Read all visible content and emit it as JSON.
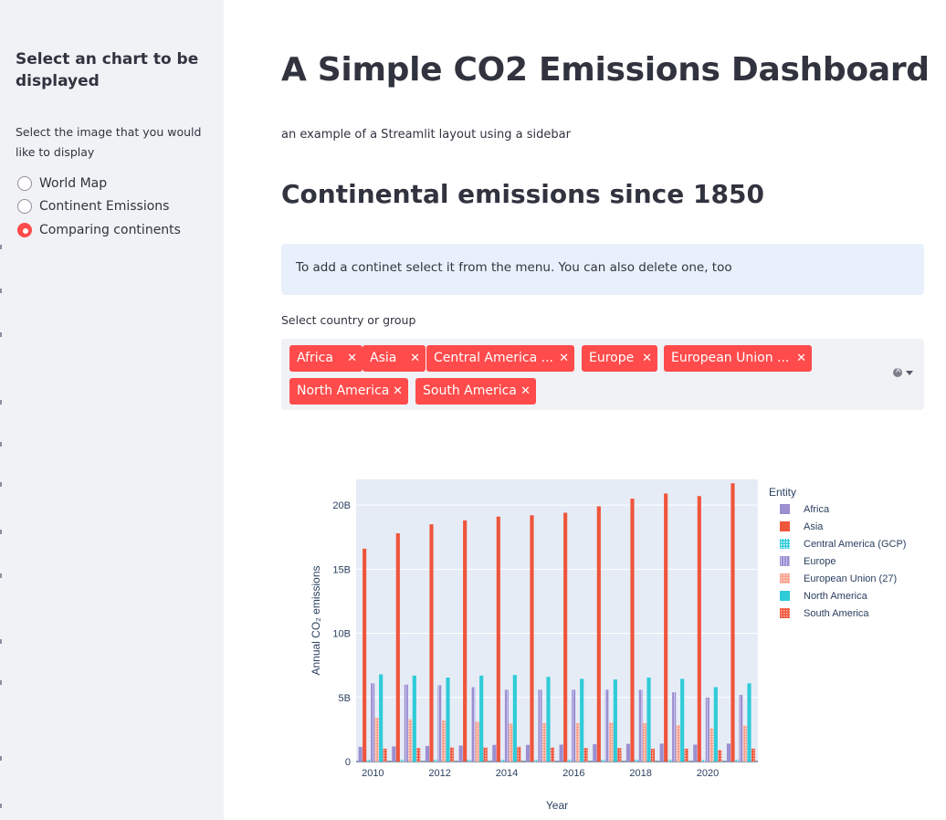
{
  "sidebar": {
    "title": "Select an chart to be displayed",
    "radio_label": "Select the image that you would like to display",
    "options": [
      "World Map",
      "Continent Emissions",
      "Comparing continents"
    ],
    "selected_index": 2
  },
  "main": {
    "title": "A Simple CO2 Emissions Dashboard",
    "subtitle": "an example of a Streamlit layout using a sidebar",
    "section_title": "Continental emissions since 1850",
    "info": "To add a continet select it from the menu. You can also delete one, too",
    "multiselect": {
      "label": "Select country or group",
      "tags": [
        "Africa",
        "Asia",
        "Central America ...",
        "Europe",
        "European Union ...",
        "North America",
        "South America"
      ],
      "clear_icon": "clear-all-icon",
      "caret_icon": "chevron-down-icon"
    },
    "accent_color": "#ff4b4b"
  },
  "chart_data": {
    "type": "bar",
    "xlabel": "Year",
    "ylabel": "Annual CO₂ emissions",
    "legend_title": "Entity",
    "legend_position": "right",
    "ylim": [
      0,
      22000000000
    ],
    "yticks": [
      {
        "value": 0,
        "label": "0"
      },
      {
        "value": 5000000000,
        "label": "5B"
      },
      {
        "value": 10000000000,
        "label": "10B"
      },
      {
        "value": 15000000000,
        "label": "15B"
      },
      {
        "value": 20000000000,
        "label": "20B"
      }
    ],
    "xticks": [
      "2010",
      "2012",
      "2014",
      "2016",
      "2018",
      "2020"
    ],
    "categories": [
      "2010",
      "2011",
      "2012",
      "2013",
      "2014",
      "2015",
      "2016",
      "2017",
      "2018",
      "2019",
      "2020",
      "2021"
    ],
    "series": [
      {
        "name": "Africa",
        "color": "#9b8fd1",
        "values": [
          1150000000.0,
          1180000000.0,
          1220000000.0,
          1250000000.0,
          1300000000.0,
          1300000000.0,
          1320000000.0,
          1350000000.0,
          1380000000.0,
          1400000000.0,
          1320000000.0,
          1400000000.0
        ]
      },
      {
        "name": "Asia",
        "color": "#ef553b",
        "values": [
          16600000000.0,
          17800000000.0,
          18500000000.0,
          18800000000.0,
          19100000000.0,
          19200000000.0,
          19400000000.0,
          19900000000.0,
          20500000000.0,
          20900000000.0,
          20700000000.0,
          21700000000.0
        ]
      },
      {
        "name": "Central America (GCP)",
        "color": "#2fcbd8",
        "pattern": "dots",
        "values": [
          120000000.0,
          120000000.0,
          120000000.0,
          120000000.0,
          120000000.0,
          120000000.0,
          120000000.0,
          120000000.0,
          120000000.0,
          120000000.0,
          110000000.0,
          120000000.0
        ]
      },
      {
        "name": "Europe",
        "color": "#9b8fd1",
        "pattern": "stripes",
        "values": [
          6100000000.0,
          6000000000.0,
          5950000000.0,
          5800000000.0,
          5600000000.0,
          5600000000.0,
          5600000000.0,
          5600000000.0,
          5600000000.0,
          5400000000.0,
          5000000000.0,
          5200000000.0
        ]
      },
      {
        "name": "European Union (27)",
        "color": "#f7a18c",
        "pattern": "dots",
        "values": [
          3400000000.0,
          3300000000.0,
          3200000000.0,
          3100000000.0,
          2950000000.0,
          3000000000.0,
          3000000000.0,
          3050000000.0,
          3000000000.0,
          2850000000.0,
          2600000000.0,
          2800000000.0
        ]
      },
      {
        "name": "North America",
        "color": "#2fcbd8",
        "values": [
          6800000000.0,
          6700000000.0,
          6550000000.0,
          6700000000.0,
          6750000000.0,
          6600000000.0,
          6450000000.0,
          6400000000.0,
          6550000000.0,
          6450000000.0,
          5800000000.0,
          6100000000.0
        ]
      },
      {
        "name": "South America",
        "color": "#ef553b",
        "pattern": "dots",
        "values": [
          1000000000.0,
          1050000000.0,
          1100000000.0,
          1100000000.0,
          1150000000.0,
          1100000000.0,
          1050000000.0,
          1050000000.0,
          1000000000.0,
          1000000000.0,
          900000000.0,
          1000000000.0
        ]
      }
    ]
  }
}
